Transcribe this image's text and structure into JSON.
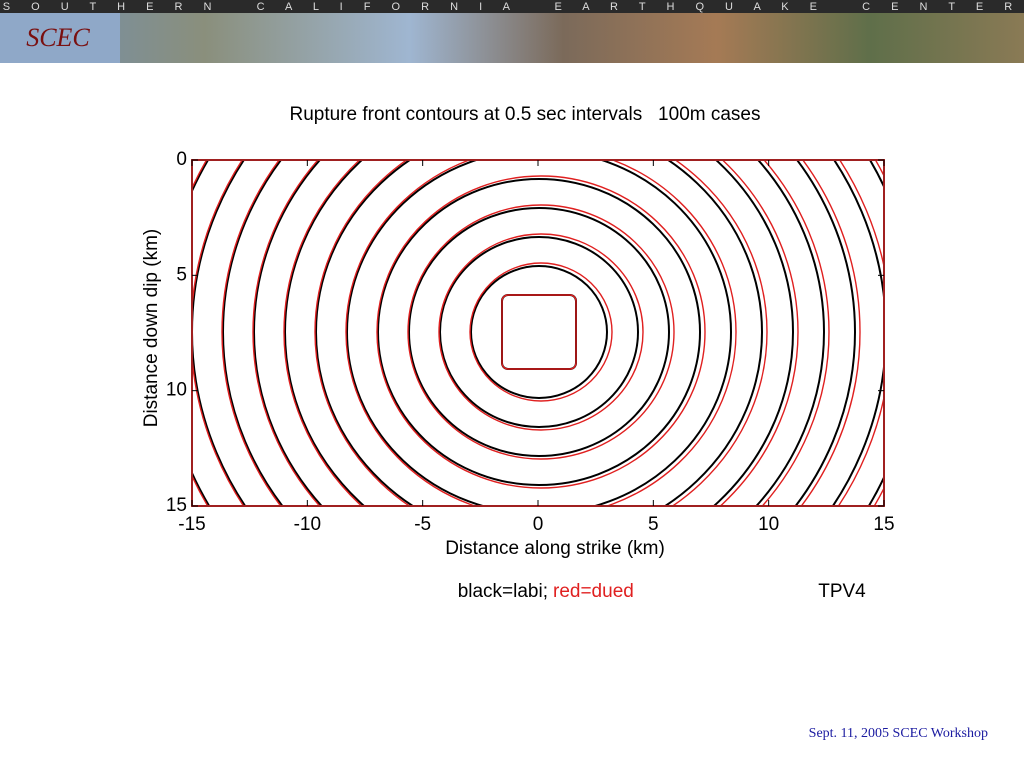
{
  "header": {
    "banner": "S O U T H E R N   C A L I F O R N I A   E A R T H Q U A K E   C E N T E R",
    "logo": "SCEC"
  },
  "chart_data": {
    "type": "contour",
    "title": "Rupture front contours at 0.5 sec intervals   100m cases",
    "x_label": "Distance along strike (km)",
    "y_label": "Distance down dip (km)",
    "xlim": [
      -15,
      15
    ],
    "ylim": [
      0,
      15
    ],
    "y_inverted": true,
    "xticks": [
      -15,
      -10,
      -5,
      0,
      5,
      10,
      15
    ],
    "yticks": [
      0,
      5,
      10,
      15
    ],
    "series": [
      {
        "name": "black=labi;",
        "color": "#000000"
      },
      {
        "name": "red=dued",
        "color": "#e02020"
      }
    ],
    "annotation": "TPV4"
  },
  "footer": "Sept. 11, 2005 SCEC Workshop"
}
